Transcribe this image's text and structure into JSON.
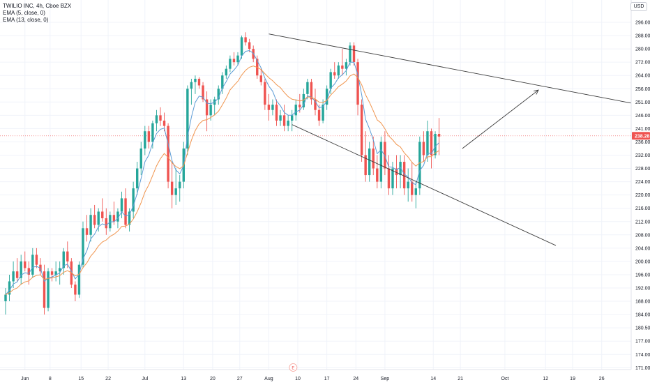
{
  "legend": {
    "symbol_line": "TWILIO INC, 4h, Cboe BZX",
    "ema5_label": "EMA (5, close, 0)",
    "ema13_label": "EMA (13, close, 0)"
  },
  "currency_button": "USD",
  "event_marker": "E",
  "colors": {
    "up": "#26a69a",
    "down": "#ef5350",
    "ema5": "#5b9bd5",
    "ema13": "#f0944d",
    "trendline": "#3a3a3a",
    "price_line": "#ef5350",
    "grid": "#f0f3fa",
    "axis_text": "#131722"
  },
  "chart_data": {
    "type": "candlestick",
    "price_axis_ticks": [
      "296.00",
      "288.00",
      "280.00",
      "272.00",
      "264.00",
      "256.00",
      "251.00",
      "246.00",
      "241.00",
      "236.00",
      "232.00",
      "228.00",
      "224.00",
      "220.00",
      "216.00",
      "212.00",
      "208.00",
      "204.00",
      "200.00",
      "196.00",
      "192.00",
      "188.00",
      "184.00",
      "180.50",
      "177.00",
      "174.00",
      "171.00"
    ],
    "price_axis_values": [
      296,
      288,
      280,
      272,
      264,
      256,
      251,
      246,
      241,
      236,
      232,
      228,
      224,
      220,
      216,
      212,
      208,
      204,
      200,
      196,
      192,
      188,
      184,
      180.5,
      177,
      174,
      171
    ],
    "time_axis_labels": [
      "Jun",
      "8",
      "15",
      "22",
      "Jul",
      "13",
      "20",
      "27",
      "Aug",
      "10",
      "17",
      "24",
      "Sep",
      "14",
      "21",
      "Oct",
      "12",
      "19",
      "26"
    ],
    "time_axis_index": [
      5,
      11.5,
      19.5,
      26.5,
      36,
      46,
      53.5,
      60.5,
      68,
      75.5,
      83,
      90.5,
      98,
      110.5,
      117.5,
      129,
      139.5,
      146.5,
      154
    ],
    "last_price_label": "238.28",
    "last_price": 238.28,
    "candles": [
      [
        188,
        192,
        184,
        190
      ],
      [
        190,
        196,
        188,
        194
      ],
      [
        194,
        200,
        192,
        197
      ],
      [
        197,
        201,
        194,
        195
      ],
      [
        195,
        202,
        193,
        200
      ],
      [
        200,
        203,
        197,
        198
      ],
      [
        198,
        200,
        193,
        196
      ],
      [
        196,
        204,
        195,
        202
      ],
      [
        202,
        204,
        198,
        199
      ],
      [
        199,
        201,
        196,
        197
      ],
      [
        197,
        199,
        184,
        186
      ],
      [
        186,
        198,
        185,
        197
      ],
      [
        197,
        198,
        194,
        196
      ],
      [
        196,
        200,
        194,
        197
      ],
      [
        197,
        200,
        193,
        198
      ],
      [
        198,
        204,
        196,
        203
      ],
      [
        203,
        206,
        198,
        200
      ],
      [
        200,
        201,
        192,
        193
      ],
      [
        193,
        194,
        188,
        190
      ],
      [
        190,
        200,
        189,
        199
      ],
      [
        199,
        212,
        198,
        210
      ],
      [
        210,
        214,
        206,
        208
      ],
      [
        208,
        216,
        206,
        214
      ],
      [
        214,
        217,
        210,
        211
      ],
      [
        211,
        216,
        209,
        215
      ],
      [
        215,
        219,
        212,
        213
      ],
      [
        213,
        216,
        208,
        210
      ],
      [
        210,
        215,
        209,
        214
      ],
      [
        214,
        218,
        211,
        212
      ],
      [
        212,
        216,
        210,
        215
      ],
      [
        215,
        221,
        213,
        219
      ],
      [
        219,
        222,
        210,
        211
      ],
      [
        211,
        216,
        209,
        215
      ],
      [
        215,
        224,
        213,
        222
      ],
      [
        222,
        230,
        220,
        228
      ],
      [
        228,
        236,
        226,
        234
      ],
      [
        234,
        242,
        232,
        240
      ],
      [
        240,
        242,
        234,
        236
      ],
      [
        236,
        244,
        234,
        243
      ],
      [
        243,
        248,
        240,
        246
      ],
      [
        246,
        249,
        242,
        244
      ],
      [
        244,
        247,
        240,
        242
      ],
      [
        242,
        243,
        222,
        224
      ],
      [
        224,
        230,
        216,
        220
      ],
      [
        220,
        228,
        217,
        222
      ],
      [
        222,
        226,
        218,
        224
      ],
      [
        224,
        236,
        222,
        234
      ],
      [
        234,
        258,
        232,
        256
      ],
      [
        256,
        262,
        250,
        260
      ],
      [
        260,
        264,
        254,
        262
      ],
      [
        262,
        263,
        256,
        258
      ],
      [
        258,
        260,
        251,
        252
      ],
      [
        252,
        255,
        240,
        246
      ],
      [
        246,
        252,
        244,
        250
      ],
      [
        250,
        253,
        246,
        252
      ],
      [
        252,
        258,
        250,
        256
      ],
      [
        256,
        266,
        254,
        264
      ],
      [
        264,
        270,
        262,
        268
      ],
      [
        268,
        276,
        266,
        274
      ],
      [
        274,
        278,
        270,
        272
      ],
      [
        272,
        278,
        270,
        276
      ],
      [
        276,
        288,
        274,
        287
      ],
      [
        287,
        290,
        282,
        284
      ],
      [
        284,
        286,
        278,
        280
      ],
      [
        280,
        282,
        272,
        274
      ],
      [
        274,
        276,
        262,
        264
      ],
      [
        264,
        268,
        258,
        260
      ],
      [
        260,
        262,
        248,
        250
      ],
      [
        250,
        254,
        244,
        248
      ],
      [
        248,
        252,
        246,
        250
      ],
      [
        250,
        252,
        242,
        244
      ],
      [
        244,
        248,
        242,
        246
      ],
      [
        246,
        250,
        240,
        242
      ],
      [
        242,
        246,
        240,
        244
      ],
      [
        244,
        248,
        240,
        246
      ],
      [
        246,
        252,
        244,
        250
      ],
      [
        250,
        254,
        247,
        249
      ],
      [
        249,
        256,
        248,
        254
      ],
      [
        254,
        262,
        252,
        260
      ],
      [
        260,
        262,
        250,
        252
      ],
      [
        252,
        256,
        246,
        248
      ],
      [
        248,
        250,
        242,
        244
      ],
      [
        244,
        252,
        243,
        250
      ],
      [
        250,
        258,
        248,
        256
      ],
      [
        256,
        268,
        254,
        266
      ],
      [
        266,
        272,
        262,
        264
      ],
      [
        264,
        272,
        262,
        270
      ],
      [
        270,
        280,
        264,
        268
      ],
      [
        268,
        274,
        264,
        272
      ],
      [
        272,
        284,
        270,
        282
      ],
      [
        282,
        284,
        270,
        272
      ],
      [
        272,
        274,
        246,
        250
      ],
      [
        250,
        252,
        230,
        232
      ],
      [
        232,
        240,
        224,
        226
      ],
      [
        226,
        236,
        224,
        234
      ],
      [
        234,
        238,
        226,
        228
      ],
      [
        228,
        232,
        222,
        224
      ],
      [
        224,
        238,
        222,
        236
      ],
      [
        236,
        240,
        226,
        228
      ],
      [
        228,
        232,
        220,
        222
      ],
      [
        222,
        230,
        220,
        228
      ],
      [
        228,
        232,
        222,
        226
      ],
      [
        226,
        232,
        222,
        230
      ],
      [
        230,
        232,
        220,
        222
      ],
      [
        222,
        228,
        218,
        224
      ],
      [
        224,
        230,
        218,
        220
      ],
      [
        220,
        224,
        216,
        222
      ],
      [
        222,
        238,
        220,
        236
      ],
      [
        236,
        240,
        230,
        232
      ],
      [
        232,
        244,
        230,
        240
      ],
      [
        240,
        241,
        228,
        232
      ],
      [
        232,
        240,
        231,
        239
      ],
      [
        239,
        245,
        232,
        238
      ]
    ]
  }
}
